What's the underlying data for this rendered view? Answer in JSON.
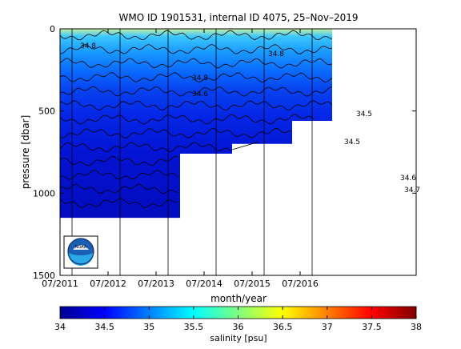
{
  "chart_data": {
    "type": "heatmap",
    "title": "WMO ID 1901531, internal ID 4075, 25–Nov–2019",
    "xlabel": "month/year",
    "ylabel": "pressure [dbar]",
    "colorbar_label": "salinity [psu]",
    "x_ticks": [
      "07/2011",
      "07/2012",
      "07/2013",
      "07/2014",
      "07/2015",
      "07/2016"
    ],
    "y_ticks": [
      "0",
      "500",
      "1000",
      "1500"
    ],
    "ylim": [
      0,
      1500
    ],
    "y_inverted": true,
    "colorbar_ticks": [
      "34",
      "34.5",
      "35",
      "35.5",
      "36",
      "36.5",
      "37",
      "37.5",
      "38"
    ],
    "colorbar_range": [
      34,
      38
    ],
    "colormap": "jet",
    "max_depth_by_period": [
      {
        "from": "07/2011",
        "to": "01/2014",
        "max_pressure": 1150
      },
      {
        "from": "01/2014",
        "to": "02/2015",
        "max_pressure": 760
      },
      {
        "from": "02/2015",
        "to": "05/2016",
        "max_pressure": 700
      },
      {
        "from": "05/2016",
        "to": "03/2017",
        "max_pressure": 560
      }
    ],
    "contour_labels": [
      "34.8",
      "34.8",
      "34.8",
      "34.6",
      "34.5",
      "34.6",
      "34.5",
      "34.7"
    ],
    "contour_levels": [
      34.3,
      34.4,
      34.5,
      34.6,
      34.7,
      34.8,
      34.9,
      35.0,
      35.1,
      35.2,
      35.3,
      35.4,
      35.5
    ],
    "vertical_markers": [
      "10/2011",
      "10/2012",
      "10/2013",
      "10/2014",
      "10/2015",
      "10/2016"
    ],
    "grid": false,
    "logo": "NOAA"
  }
}
